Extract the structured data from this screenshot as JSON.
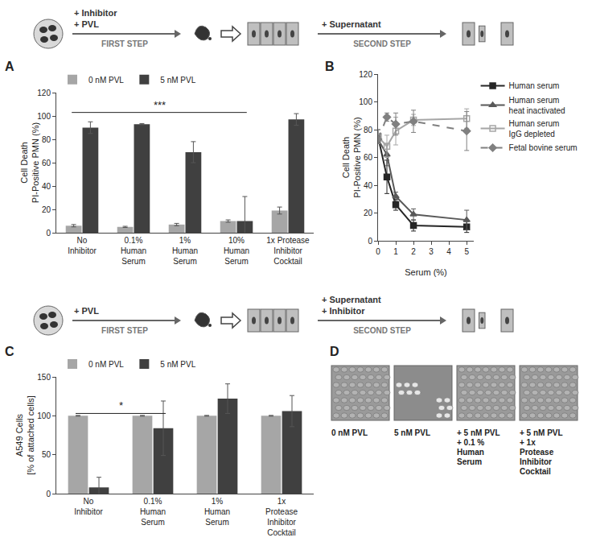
{
  "chart_data": [
    {
      "title": "A",
      "type": "bar",
      "categories": [
        "No\nInhibitor",
        "0.1%\nHuman\nSerum",
        "1%\nHuman\nSerum",
        "10%\nHuman\nSerum",
        "1x Protease\nInhibitor\nCocktail"
      ],
      "series": [
        {
          "name": "0 nM PVL",
          "color": "#a6a6a6",
          "values": [
            6,
            5,
            7,
            10,
            19
          ],
          "error": [
            1,
            0.5,
            1,
            1,
            3
          ]
        },
        {
          "name": "5 nM PVL",
          "color": "#404040",
          "values": [
            90,
            93,
            69,
            10,
            97
          ],
          "error": [
            5,
            0.5,
            9,
            21,
            5
          ]
        }
      ],
      "y_label": "Cell Death\nPI-Positive PMN (%)",
      "ylim": [
        0,
        120
      ],
      "yticks": [
        0,
        20,
        40,
        60,
        80,
        100,
        120
      ],
      "grid": false,
      "legend": "top",
      "significance": [
        {
          "from": 0,
          "to": 3,
          "y": 103,
          "label": "***"
        }
      ]
    },
    {
      "title": "B",
      "type": "line",
      "x": [
        0,
        0.5,
        1,
        2,
        5
      ],
      "series": [
        {
          "name": "Human serum",
          "color": "#262626",
          "marker": "square",
          "line_style": "solid",
          "values": [
            75,
            46,
            26,
            11,
            10
          ],
          "error": [
            5,
            12,
            4,
            4,
            4
          ]
        },
        {
          "name": "Human serum\nheat inactivated",
          "color": "#595959",
          "marker": "triangle-up",
          "line_style": "solid",
          "values": [
            73,
            62,
            32,
            19,
            15
          ],
          "error": [
            3,
            8,
            3,
            4,
            7
          ]
        },
        {
          "name": "Human serum\nIgG depleted",
          "color": "#a6a6a6",
          "marker": "square-open",
          "line_style": "solid",
          "values": [
            75,
            68,
            79,
            87,
            88
          ],
          "error": [
            5,
            8,
            10,
            4,
            7
          ]
        },
        {
          "name": "Fetal bovine serum",
          "color": "#808080",
          "marker": "diamond",
          "line_style": "dash",
          "values": [
            73,
            89,
            84,
            86,
            79
          ],
          "error": [
            3,
            3,
            8,
            8,
            14
          ]
        }
      ],
      "x_label": "Serum (%)",
      "y_label": "Cell Death\nPI-Positive PMN (%)",
      "xlim": [
        0,
        5.4
      ],
      "xticks": [
        0,
        1,
        2,
        3,
        4,
        5
      ],
      "ylim": [
        0,
        120
      ],
      "yticks": [
        0,
        20,
        40,
        60,
        80,
        100,
        120
      ],
      "grid": false,
      "legend": "right"
    },
    {
      "title": "C",
      "type": "bar",
      "categories": [
        "No\nInhibitor",
        "0.1%\nHuman\nSerum",
        "1%\nHuman\nSerum",
        "1x\nProtease\nInhibitor\nCocktail"
      ],
      "series": [
        {
          "name": "0 nM PVL",
          "color": "#a6a6a6",
          "values": [
            100,
            100,
            100,
            100
          ],
          "error": [
            0.5,
            0.5,
            0.5,
            0.5
          ]
        },
        {
          "name": "5 nM PVL",
          "color": "#404040",
          "values": [
            8,
            84,
            122,
            106
          ],
          "error": [
            13,
            35,
            19,
            20
          ]
        }
      ],
      "y_label": "A549 Cells\n[% of attached cells]",
      "ylim": [
        0,
        150
      ],
      "yticks": [
        0,
        50,
        100,
        150
      ],
      "grid": false,
      "legend": "top",
      "significance": [
        {
          "from": 0,
          "to": 1,
          "y": 103,
          "label": "*"
        }
      ]
    }
  ],
  "diagrams": [
    {
      "first_labels": [
        "+ Inhibitor",
        "+ PVL"
      ],
      "first_caption": "FIRST STEP",
      "second_labels": [
        "+ Supernatant"
      ],
      "second_caption": "SECOND STEP"
    },
    {
      "first_labels": [
        "+ PVL"
      ],
      "first_caption": "FIRST STEP",
      "second_labels": [
        "+ Supernatant",
        "+ Inhibitor"
      ],
      "second_caption": "SECOND STEP"
    }
  ],
  "panel_d": {
    "title": "D",
    "images": [
      "0 nM PVL",
      "5 nM PVL",
      "+ 5 nM  PVL\n+ 0.1 %\nHuman\nSerum",
      "+ 5 nM PVL\n+ 1x\nProtease\nInhibitor\nCocktail"
    ]
  }
}
